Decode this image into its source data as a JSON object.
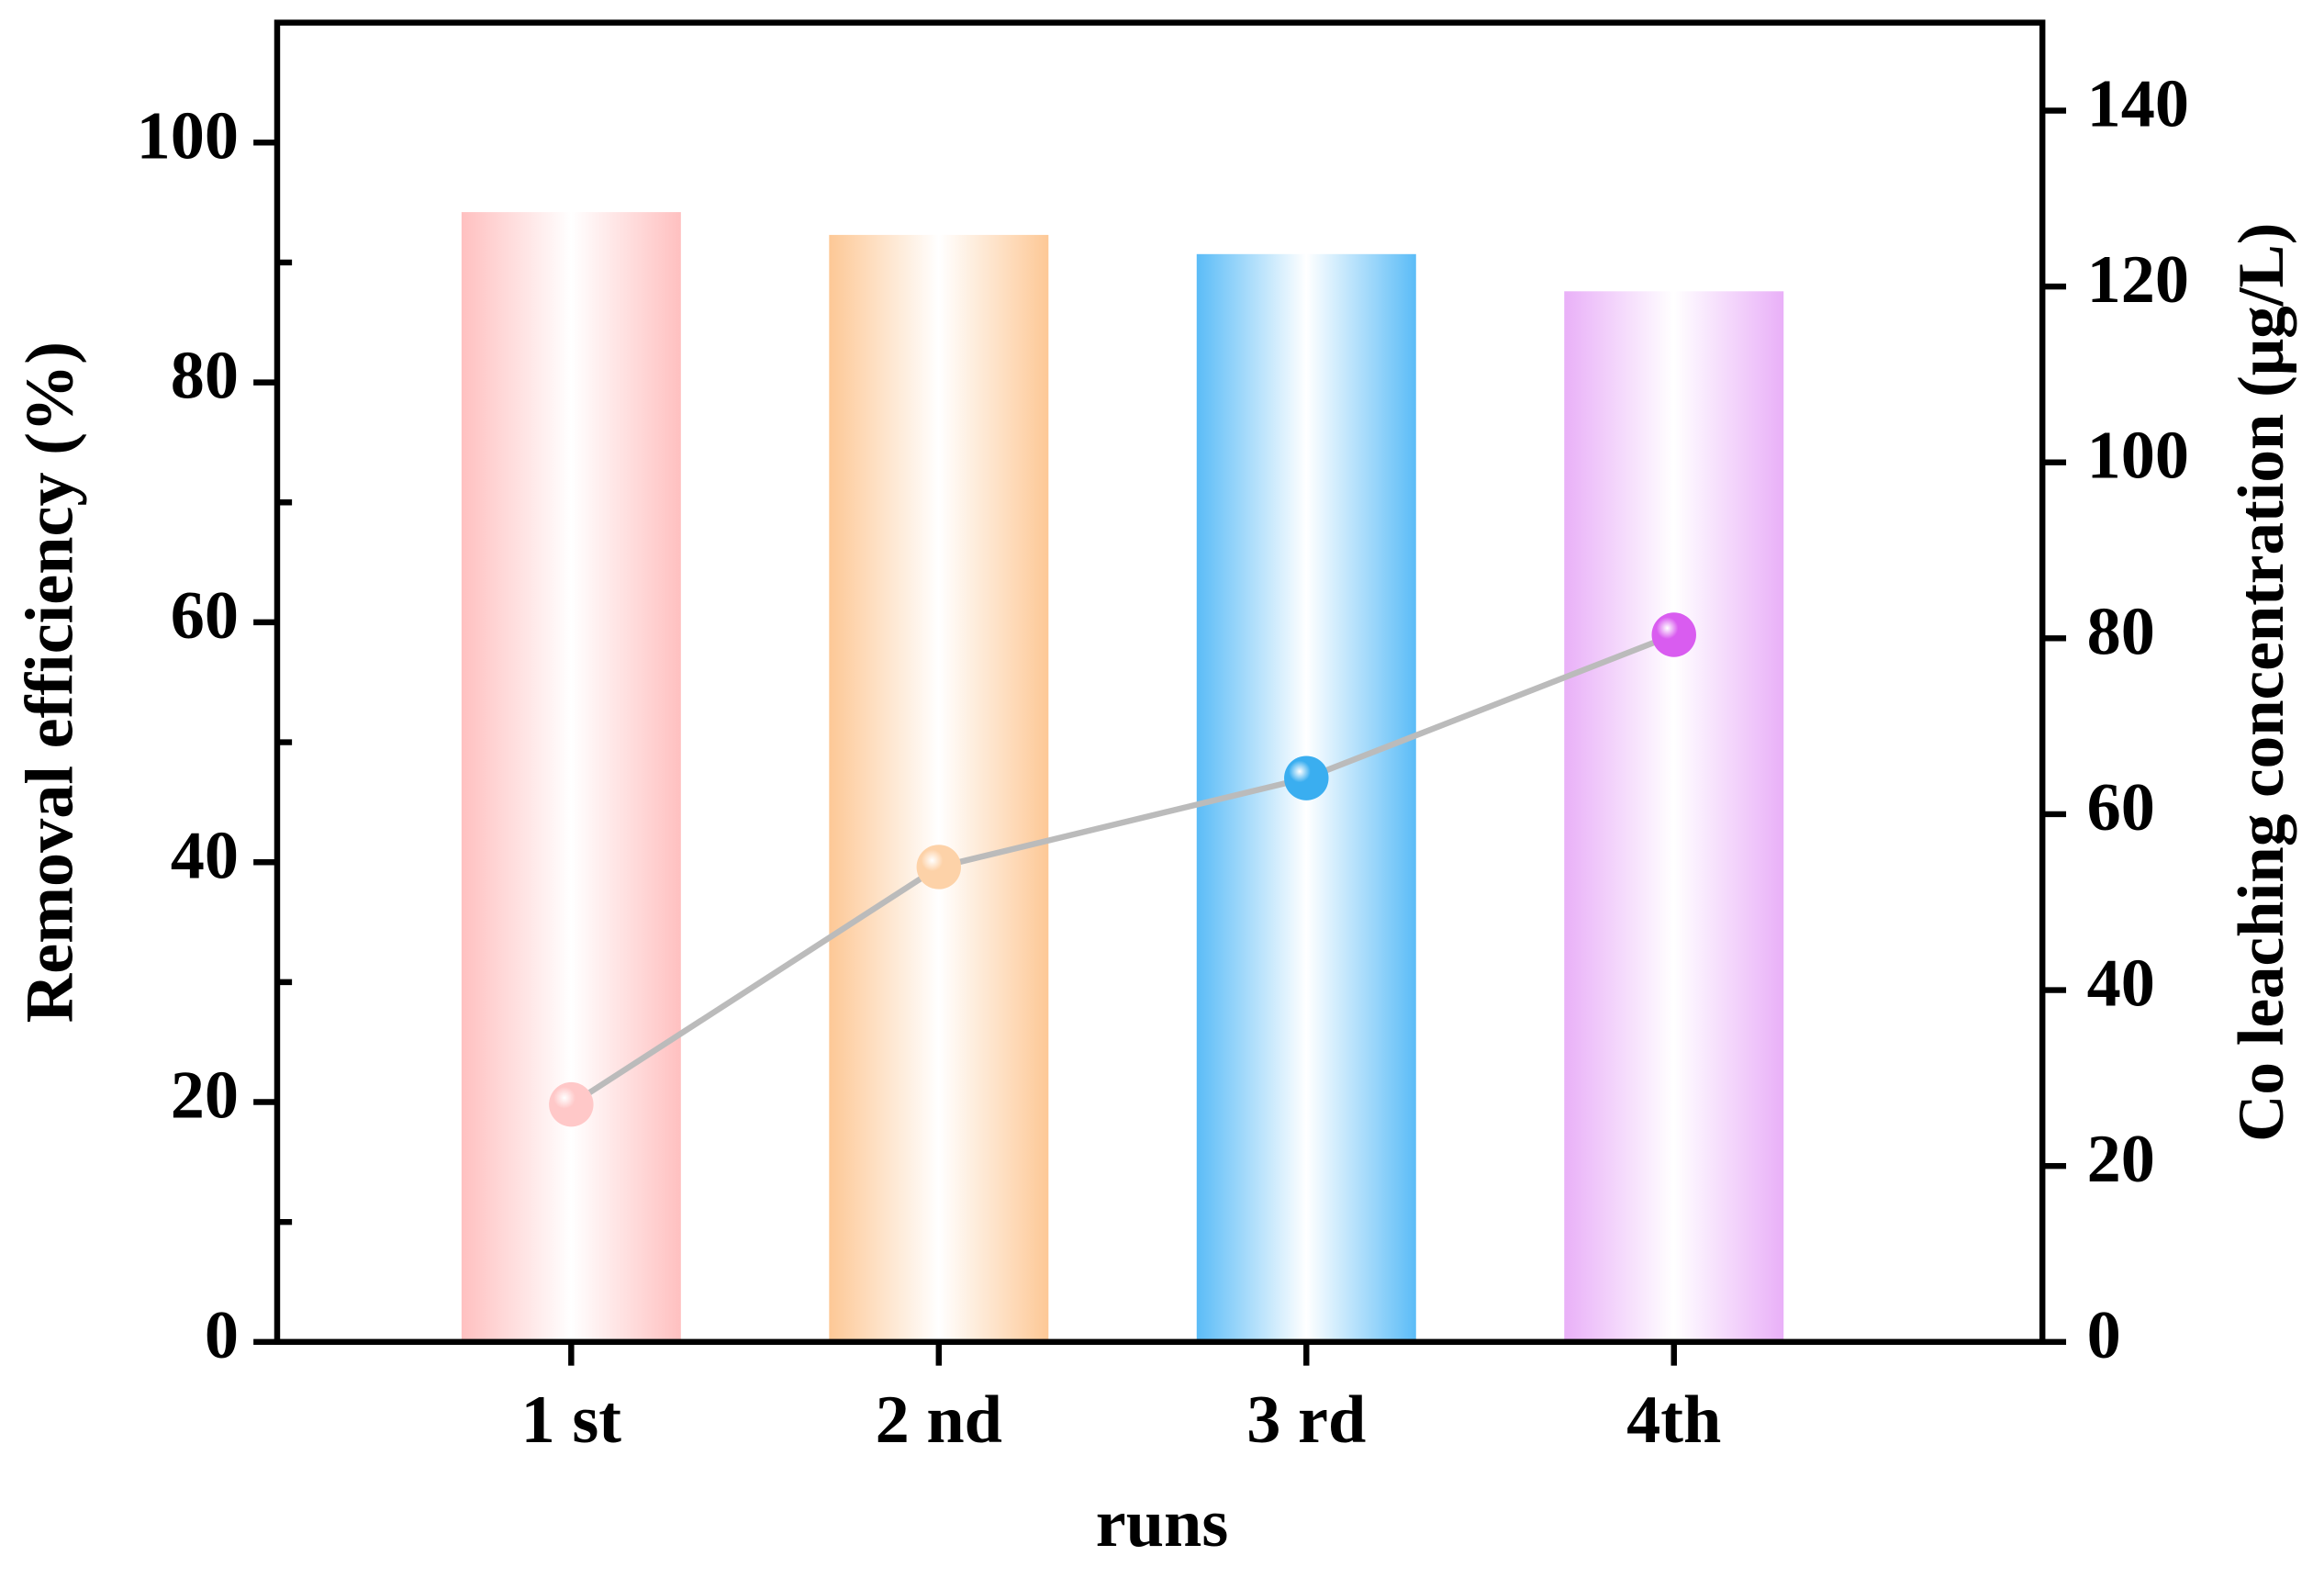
{
  "chart_data": {
    "type": "bar",
    "xlabel": "runs",
    "ylabel": "Removal efficiency (%)",
    "y2label": "Co leaching concentration (μg/L)",
    "categories": [
      "1 st",
      "2 nd",
      "3 rd",
      "4th"
    ],
    "series": [
      {
        "type": "bar",
        "axis": "y",
        "colors": [
          "#ffc0c0",
          "#fdc896",
          "#5bbcf7",
          "#e9b0f8"
        ],
        "values": [
          94.2,
          92.3,
          90.7,
          87.6
        ]
      },
      {
        "type": "line",
        "axis": "y2",
        "color": "#bbbbbb",
        "colors": [
          "#ffc8c8",
          "#fdd2a8",
          "#3aaef0",
          "#d95cf0"
        ],
        "values": [
          27.0,
          54.0,
          64.1,
          80.4
        ]
      }
    ],
    "ylim": [
      0,
      110
    ],
    "yticks": [
      0,
      20,
      40,
      60,
      80,
      100
    ],
    "yminorticks": [
      10,
      30,
      50,
      70,
      90
    ],
    "y2lim": [
      0,
      150
    ],
    "y2ticks": [
      0,
      20,
      40,
      60,
      80,
      100,
      120,
      140
    ]
  }
}
